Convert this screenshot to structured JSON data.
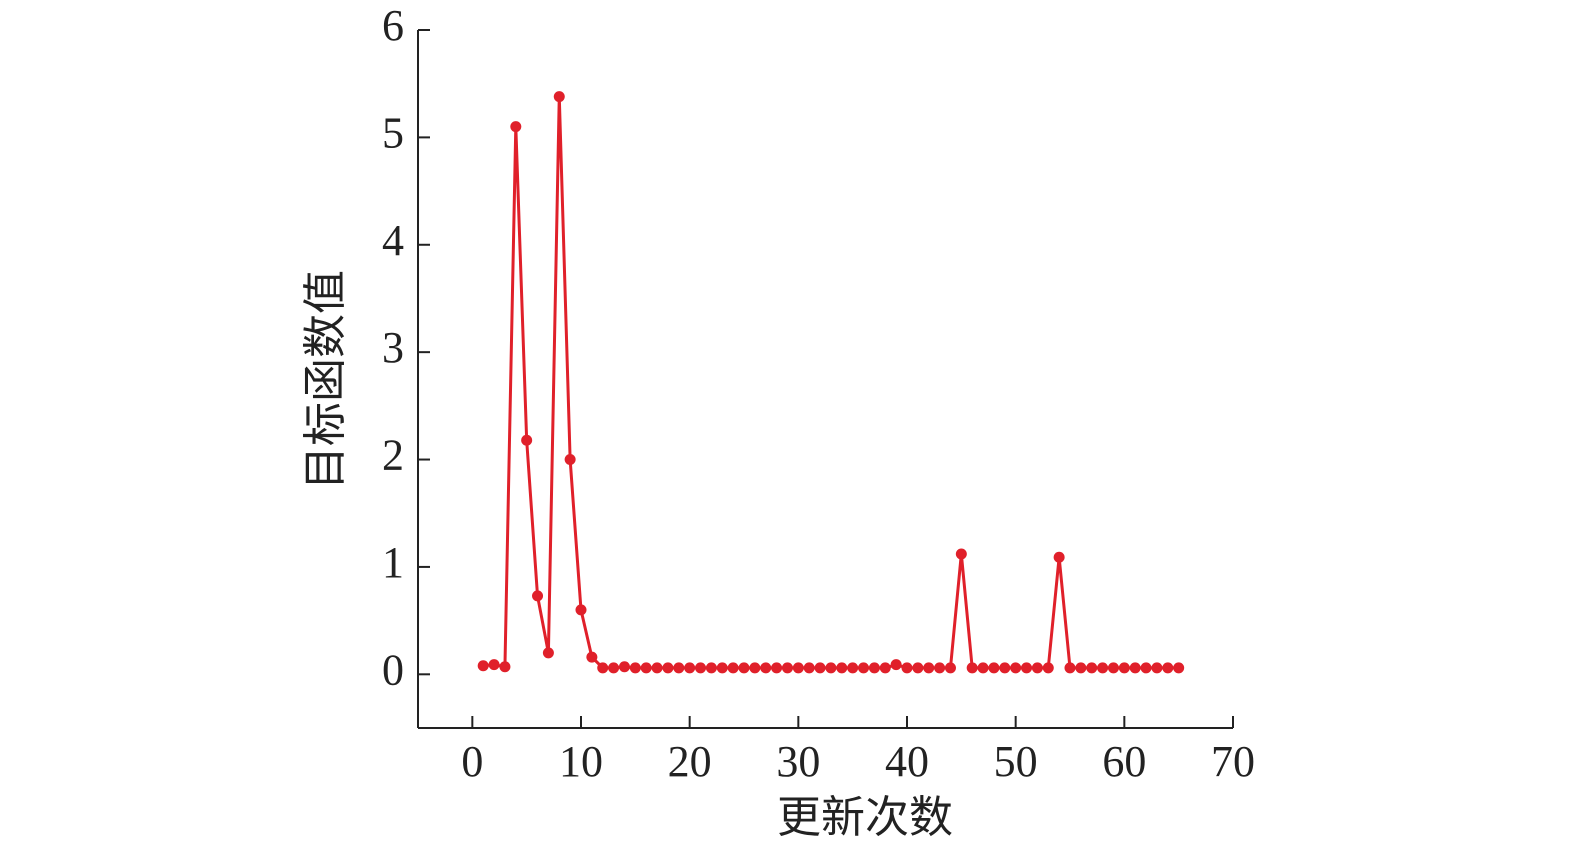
{
  "chart_data": {
    "type": "line",
    "x_label": "更新次数",
    "y_label": "目标函数值",
    "x": [
      1,
      2,
      3,
      4,
      5,
      6,
      7,
      8,
      9,
      10,
      11,
      12,
      13,
      14,
      15,
      16,
      17,
      18,
      19,
      20,
      21,
      22,
      23,
      24,
      25,
      26,
      27,
      28,
      29,
      30,
      31,
      32,
      33,
      34,
      35,
      36,
      37,
      38,
      39,
      40,
      41,
      42,
      43,
      44,
      45,
      46,
      47,
      48,
      49,
      50,
      51,
      52,
      53,
      54,
      55,
      56,
      57,
      58,
      59,
      60,
      61,
      62,
      63,
      64,
      65
    ],
    "series": [
      {
        "color": "#e0202a",
        "values": [
          0.08,
          0.09,
          0.07,
          5.1,
          2.18,
          0.73,
          0.2,
          5.38,
          2.0,
          0.6,
          0.16,
          0.06,
          0.06,
          0.07,
          0.06,
          0.06,
          0.06,
          0.06,
          0.06,
          0.06,
          0.06,
          0.06,
          0.06,
          0.06,
          0.06,
          0.06,
          0.06,
          0.06,
          0.06,
          0.06,
          0.06,
          0.06,
          0.06,
          0.06,
          0.06,
          0.06,
          0.06,
          0.06,
          0.09,
          0.06,
          0.06,
          0.06,
          0.06,
          0.06,
          1.12,
          0.06,
          0.06,
          0.06,
          0.06,
          0.06,
          0.06,
          0.06,
          0.06,
          1.09,
          0.06,
          0.06,
          0.06,
          0.06,
          0.06,
          0.06,
          0.06,
          0.06,
          0.06,
          0.06,
          0.06
        ]
      }
    ],
    "xlim": [
      -5,
      70
    ],
    "xticks": [
      0,
      10,
      20,
      30,
      40,
      50,
      60,
      70
    ],
    "ylim": [
      -0.5,
      6
    ],
    "yticks": [
      0,
      1,
      2,
      3,
      4,
      5,
      6
    ]
  }
}
